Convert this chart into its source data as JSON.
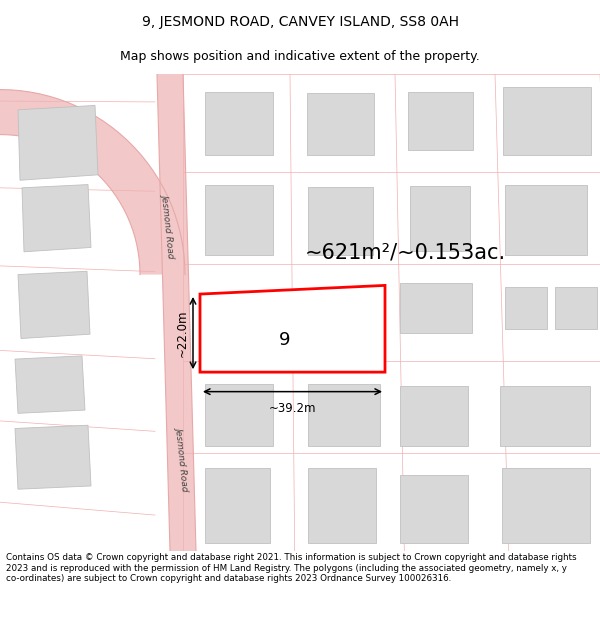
{
  "title_line1": "9, JESMOND ROAD, CANVEY ISLAND, SS8 0AH",
  "title_line2": "Map shows position and indicative extent of the property.",
  "area_text": "~621m²/~0.153ac.",
  "plot_number": "9",
  "dim_width": "~39.2m",
  "dim_height": "~22.0m",
  "footer_text": "Contains OS data © Crown copyright and database right 2021. This information is subject to Crown copyright and database rights 2023 and is reproduced with the permission of HM Land Registry. The polygons (including the associated geometry, namely x, y co-ordinates) are subject to Crown copyright and database rights 2023 Ordnance Survey 100026316.",
  "map_bg": "#f7f7f7",
  "road_fill": "#f2c8c8",
  "road_line": "#e8a8a8",
  "prop_line": "#f0b0b0",
  "bld_fill": "#d8d8d8",
  "bld_edge": "#c0c0c0",
  "plot_edge": "#ff0000",
  "plot_fill": "#ffffff",
  "dim_color": "#000000",
  "road_label": "Jesmond Road",
  "title_fontsize": 10,
  "subtitle_fontsize": 9,
  "area_fontsize": 15,
  "plot_num_fontsize": 13
}
